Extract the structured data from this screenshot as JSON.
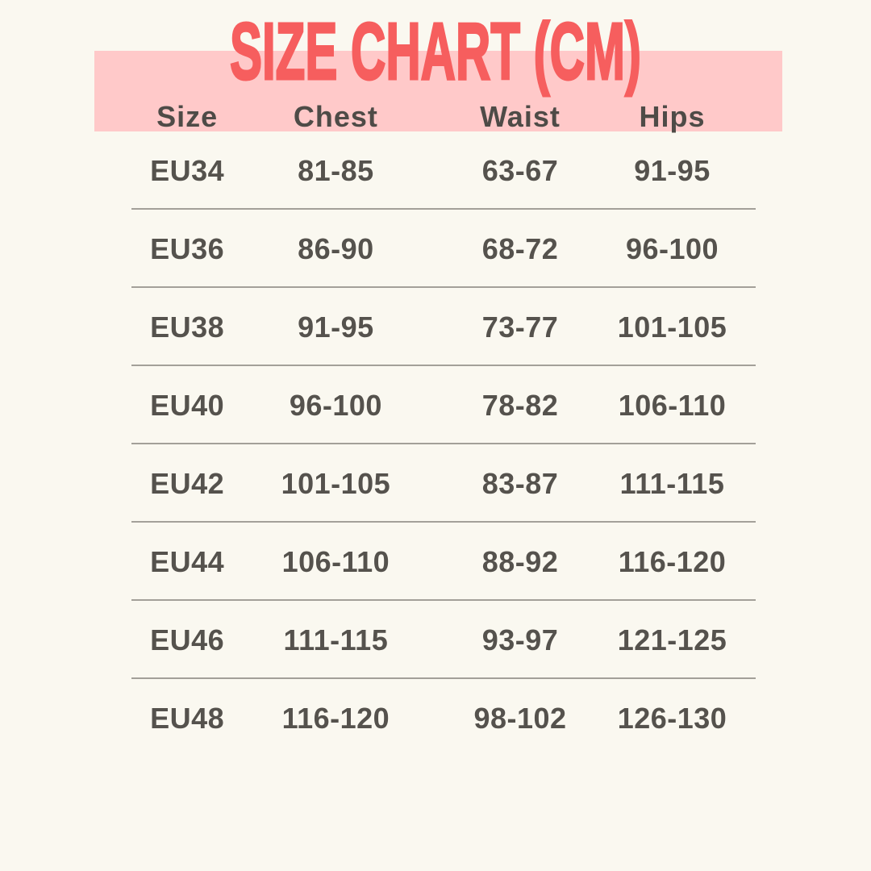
{
  "theme": {
    "background": "#FAF8F0",
    "band": "#FFC9C9",
    "accent": "#F65E5E",
    "text": "#55524D",
    "divider": "#A3A099"
  },
  "title": {
    "text": "SIZE CHART (CM)"
  },
  "table": {
    "columns": [
      "Size",
      "Chest",
      "Waist",
      "Hips"
    ],
    "rows": [
      {
        "size": "EU34",
        "chest": "81-85",
        "waist": "63-67",
        "hips": "91-95"
      },
      {
        "size": "EU36",
        "chest": "86-90",
        "waist": "68-72",
        "hips": "96-100"
      },
      {
        "size": "EU38",
        "chest": "91-95",
        "waist": "73-77",
        "hips": "101-105"
      },
      {
        "size": "EU40",
        "chest": "96-100",
        "waist": "78-82",
        "hips": "106-110"
      },
      {
        "size": "EU42",
        "chest": "101-105",
        "waist": "83-87",
        "hips": "111-115"
      },
      {
        "size": "EU44",
        "chest": "106-110",
        "waist": "88-92",
        "hips": "116-120"
      },
      {
        "size": "EU46",
        "chest": "111-115",
        "waist": "93-97",
        "hips": "121-125"
      },
      {
        "size": "EU48",
        "chest": "116-120",
        "waist": "98-102",
        "hips": "126-130"
      }
    ]
  },
  "chart_data": {
    "type": "table",
    "title": "SIZE CHART (CM)",
    "units": "cm",
    "columns": [
      "Size",
      "Chest",
      "Waist",
      "Hips"
    ],
    "rows": [
      [
        "EU34",
        "81-85",
        "63-67",
        "91-95"
      ],
      [
        "EU36",
        "86-90",
        "68-72",
        "96-100"
      ],
      [
        "EU38",
        "91-95",
        "73-77",
        "101-105"
      ],
      [
        "EU40",
        "96-100",
        "78-82",
        "106-110"
      ],
      [
        "EU42",
        "101-105",
        "83-87",
        "111-115"
      ],
      [
        "EU44",
        "106-110",
        "88-92",
        "116-120"
      ],
      [
        "EU46",
        "111-115",
        "93-97",
        "121-125"
      ],
      [
        "EU48",
        "116-120",
        "98-102",
        "126-130"
      ]
    ]
  }
}
